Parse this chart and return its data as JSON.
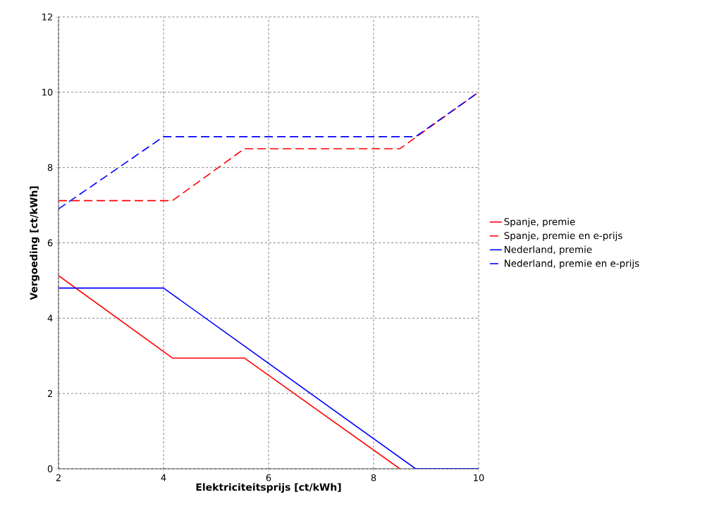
{
  "chart_data": {
    "type": "line",
    "xlabel": "Elektriciteitsprijs [ct/kWh]",
    "ylabel": "Vergoeding [ct/kWh]",
    "xlim": [
      2,
      10
    ],
    "ylim": [
      0,
      12
    ],
    "xticks": [
      2,
      4,
      6,
      8,
      10
    ],
    "yticks": [
      0,
      2,
      4,
      6,
      8,
      10,
      12
    ],
    "grid": true,
    "legend": "right",
    "marker": "none",
    "series": [
      {
        "name": "Spanje, premie",
        "color": "#ff0000",
        "line_style": "solid",
        "x": [
          2,
          4.17,
          5.54,
          8.5
        ],
        "values": [
          5.13,
          2.94,
          2.94,
          0
        ]
      },
      {
        "name": "Spanje, premie en e-prijs",
        "color": "#ff0000",
        "line_style": "dashed",
        "x": [
          2,
          4.17,
          5.54,
          8.5,
          10
        ],
        "values": [
          7.12,
          7.12,
          8.5,
          8.5,
          10
        ]
      },
      {
        "name": "Nederland, premie",
        "color": "#0000ff",
        "line_style": "solid",
        "x": [
          2,
          4,
          8.8,
          10
        ],
        "values": [
          4.8,
          4.8,
          0,
          0
        ]
      },
      {
        "name": "Nederland, premie en e-prijs",
        "color": "#0000ff",
        "line_style": "dashed",
        "x": [
          2,
          4,
          8.8,
          10
        ],
        "values": [
          6.9,
          8.82,
          8.82,
          10
        ]
      }
    ]
  }
}
